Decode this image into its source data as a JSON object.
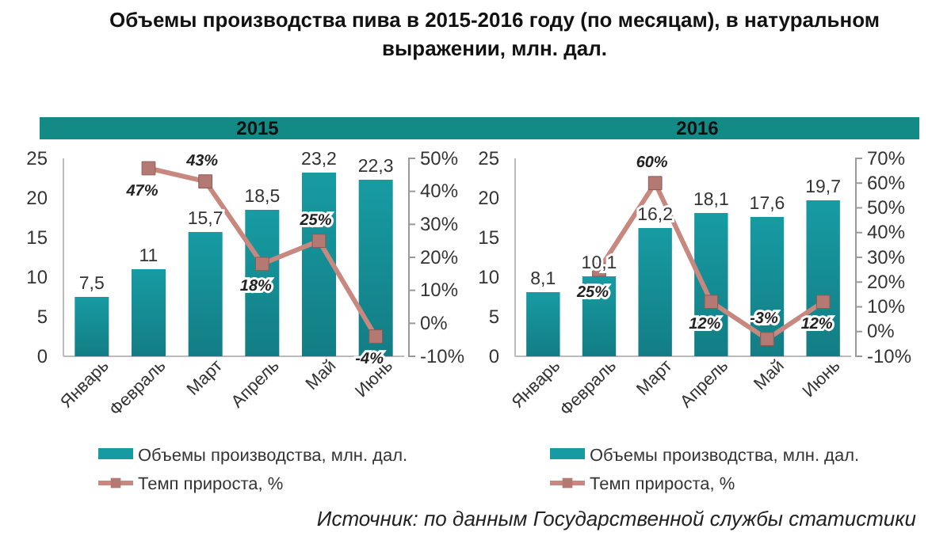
{
  "chart_data": [
    {
      "type": "bar",
      "title": "2015",
      "annotations": [
        "Объемы производства пива в 2015-2016 году (по месяцам), в натуральном выражении, млн. дал."
      ],
      "categories": [
        "Январь",
        "Февраль",
        "Март",
        "Апрель",
        "Май",
        "Июнь"
      ],
      "series": [
        {
          "name": "Объемы производства, млн. дал.",
          "color": "#179ba3",
          "values": [
            7.5,
            11,
            15.7,
            18.5,
            23.2,
            22.3
          ],
          "value_labels": [
            "7,5",
            "11",
            "15,7",
            "18,5",
            "23,2",
            "22,3"
          ]
        },
        {
          "name": "Темп прироста, %",
          "type": "line",
          "axis": "y2",
          "color": "#c8877f",
          "marker": "square",
          "values": [
            null,
            47,
            43,
            18,
            25,
            -4
          ],
          "value_labels": [
            null,
            "47%",
            "43%",
            "18%",
            "25%",
            "-4%"
          ]
        }
      ],
      "ylim": [
        0,
        25
      ],
      "yticks": [
        0,
        5,
        10,
        15,
        20,
        25
      ],
      "y2lim": [
        -10,
        50
      ],
      "y2ticks": [
        {
          "value": -10,
          "label": "-10%"
        },
        {
          "value": 0,
          "label": "0%"
        },
        {
          "value": 10,
          "label": "10%"
        },
        {
          "value": 20,
          "label": "20%"
        },
        {
          "value": 30,
          "label": "30%"
        },
        {
          "value": 40,
          "label": "40%"
        },
        {
          "value": 50,
          "label": "50%"
        }
      ],
      "legend": "bottom",
      "grid": false
    },
    {
      "type": "bar",
      "title": "2016",
      "annotations": [
        "Источник: по данным Государственной службы статистики"
      ],
      "categories": [
        "Январь",
        "Февраль",
        "Март",
        "Апрель",
        "Май",
        "Июнь"
      ],
      "series": [
        {
          "name": "Объемы производства, млн. дал.",
          "color": "#179ba3",
          "values": [
            8.1,
            10.1,
            16.2,
            18.1,
            17.6,
            19.7
          ],
          "value_labels": [
            "8,1",
            "10,1",
            "16,2",
            "18,1",
            "17,6",
            "19,7"
          ]
        },
        {
          "name": "Темп прироста, %",
          "type": "line",
          "axis": "y2",
          "color": "#c8877f",
          "marker": "square",
          "values": [
            null,
            25,
            60,
            12,
            -3,
            12
          ],
          "value_labels": [
            null,
            "25%",
            "60%",
            "12%",
            "-3%",
            "12%"
          ]
        }
      ],
      "ylim": [
        0,
        25
      ],
      "yticks": [
        0,
        5,
        10,
        15,
        20,
        25
      ],
      "y2lim": [
        -10,
        70
      ],
      "y2ticks": [
        {
          "value": -10,
          "label": "-10%"
        },
        {
          "value": 0,
          "label": "0%"
        },
        {
          "value": 10,
          "label": "10%"
        },
        {
          "value": 20,
          "label": "20%"
        },
        {
          "value": 30,
          "label": "30%"
        },
        {
          "value": 40,
          "label": "40%"
        },
        {
          "value": 50,
          "label": "50%"
        },
        {
          "value": 60,
          "label": "60%"
        },
        {
          "value": 70,
          "label": "70%"
        }
      ],
      "legend": "bottom",
      "grid": false
    }
  ]
}
